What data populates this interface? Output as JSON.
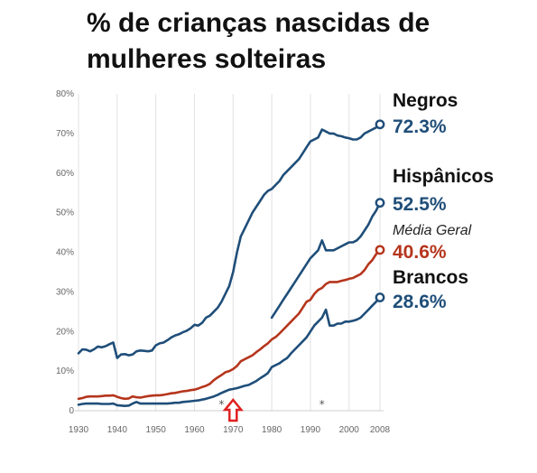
{
  "chart_data": {
    "type": "line",
    "title_lines": [
      "% de crianças nascidas de",
      "mulheres solteiras"
    ],
    "ylim": [
      0,
      80
    ],
    "xlim": [
      1930,
      2008
    ],
    "y_ticks": [
      0,
      10,
      20,
      30,
      40,
      50,
      60,
      70,
      80
    ],
    "y_tick_labels": [
      "0",
      "10%",
      "20%",
      "30%",
      "40%",
      "50%",
      "60%",
      "70%",
      "80%"
    ],
    "x_ticks": [
      1930,
      1940,
      1950,
      1960,
      1970,
      1980,
      1990,
      2000,
      2008
    ],
    "x_tick_labels": [
      "1930",
      "1940",
      "1950",
      "1960",
      "1970",
      "1980",
      "1990",
      "2000",
      "2008"
    ],
    "grid": "vertical",
    "series": [
      {
        "name": "Negros",
        "end_label": "72.3%",
        "color": "#1f4e79",
        "x": [
          1930,
          1931,
          1932,
          1933,
          1934,
          1935,
          1936,
          1937,
          1938,
          1939,
          1940,
          1941,
          1942,
          1943,
          1944,
          1945,
          1946,
          1947,
          1948,
          1949,
          1950,
          1951,
          1952,
          1953,
          1954,
          1955,
          1956,
          1957,
          1958,
          1959,
          1960,
          1961,
          1962,
          1963,
          1964,
          1965,
          1966,
          1967,
          1968,
          1969,
          1970,
          1971,
          1972,
          1973,
          1974,
          1975,
          1976,
          1977,
          1978,
          1979,
          1980,
          1981,
          1982,
          1983,
          1984,
          1985,
          1986,
          1987,
          1988,
          1989,
          1990,
          1991,
          1992,
          1993,
          1994,
          1995,
          1996,
          1997,
          1998,
          1999,
          2000,
          2001,
          2002,
          2003,
          2004,
          2005,
          2006,
          2007,
          2008
        ],
        "values": [
          14.5,
          15.5,
          15.4,
          15,
          15.5,
          16.2,
          16,
          16.3,
          16.8,
          17.2,
          13.3,
          14.2,
          14.3,
          14,
          14.2,
          15,
          15.2,
          15.1,
          15,
          15.2,
          16.5,
          17,
          17.2,
          17.8,
          18.5,
          19,
          19.3,
          19.8,
          20.2,
          20.8,
          21.7,
          21.5,
          22.2,
          23.5,
          24,
          25,
          26,
          27.5,
          29.5,
          31.5,
          35,
          40,
          44,
          46,
          48,
          50,
          51.5,
          53,
          54.5,
          55.5,
          56,
          57,
          58,
          59.5,
          60.5,
          61.5,
          62.5,
          63.5,
          65,
          66.5,
          68,
          68.5,
          69,
          71,
          70.5,
          70,
          70,
          69.5,
          69.3,
          69,
          68.8,
          68.5,
          68.5,
          69,
          70,
          70.5,
          71,
          71.5,
          72.3
        ]
      },
      {
        "name": "Hispânicos",
        "end_label": "52.5%",
        "color": "#1f4e79",
        "x": [
          1980,
          1981,
          1982,
          1983,
          1984,
          1985,
          1986,
          1987,
          1988,
          1989,
          1990,
          1991,
          1992,
          1993,
          1994,
          1995,
          1996,
          1997,
          1998,
          1999,
          2000,
          2001,
          2002,
          2003,
          2004,
          2005,
          2006,
          2007,
          2008
        ],
        "values": [
          23.5,
          25,
          26.5,
          28,
          29.5,
          31,
          32.5,
          34,
          35.5,
          37,
          38.5,
          39.5,
          40.5,
          43,
          40.5,
          40.5,
          40.5,
          41,
          41.5,
          42,
          42.5,
          42.5,
          43,
          44,
          45.5,
          47,
          49,
          50.5,
          52.5
        ]
      },
      {
        "name": "Média Geral",
        "end_label": "40.6%",
        "color": "#b5351c",
        "x": [
          1930,
          1931,
          1932,
          1933,
          1934,
          1935,
          1936,
          1937,
          1938,
          1939,
          1940,
          1941,
          1942,
          1943,
          1944,
          1945,
          1946,
          1947,
          1948,
          1949,
          1950,
          1951,
          1952,
          1953,
          1954,
          1955,
          1956,
          1957,
          1958,
          1959,
          1960,
          1961,
          1962,
          1963,
          1964,
          1965,
          1966,
          1967,
          1968,
          1969,
          1970,
          1971,
          1972,
          1973,
          1974,
          1975,
          1976,
          1977,
          1978,
          1979,
          1980,
          1981,
          1982,
          1983,
          1984,
          1985,
          1986,
          1987,
          1988,
          1989,
          1990,
          1991,
          1992,
          1993,
          1994,
          1995,
          1996,
          1997,
          1998,
          1999,
          2000,
          2001,
          2002,
          2003,
          2004,
          2005,
          2006,
          2007,
          2008
        ],
        "values": [
          3,
          3.2,
          3.5,
          3.6,
          3.6,
          3.6,
          3.7,
          3.8,
          3.8,
          3.9,
          3.5,
          3.2,
          3,
          3.1,
          3.6,
          3.4,
          3.3,
          3.5,
          3.7,
          3.8,
          3.9,
          3.9,
          4,
          4.2,
          4.4,
          4.5,
          4.7,
          4.9,
          5,
          5.2,
          5.3,
          5.6,
          6,
          6.3,
          6.8,
          7.7,
          8.4,
          9,
          9.7,
          10,
          10.5,
          11.3,
          12.5,
          13,
          13.5,
          14,
          14.8,
          15.5,
          16.3,
          17,
          18,
          18.6,
          19.5,
          20.5,
          21.5,
          22.5,
          23.5,
          24.5,
          26,
          27.5,
          28,
          29.5,
          30.5,
          31,
          32,
          32.5,
          32.5,
          32.5,
          32.8,
          33,
          33.3,
          33.5,
          34,
          34.5,
          35.5,
          37,
          38,
          39.5,
          40.6
        ]
      },
      {
        "name": "Brancos",
        "end_label": "28.6%",
        "color": "#1f4e79",
        "x": [
          1930,
          1931,
          1932,
          1933,
          1934,
          1935,
          1936,
          1937,
          1938,
          1939,
          1940,
          1941,
          1942,
          1943,
          1944,
          1945,
          1946,
          1947,
          1948,
          1949,
          1950,
          1951,
          1952,
          1953,
          1954,
          1955,
          1956,
          1957,
          1958,
          1959,
          1960,
          1961,
          1962,
          1963,
          1964,
          1965,
          1966,
          1967,
          1968,
          1969,
          1970,
          1971,
          1972,
          1973,
          1974,
          1975,
          1976,
          1977,
          1978,
          1979,
          1980,
          1981,
          1982,
          1983,
          1984,
          1985,
          1986,
          1987,
          1988,
          1989,
          1990,
          1991,
          1992,
          1993,
          1994,
          1995,
          1996,
          1997,
          1998,
          1999,
          2000,
          2001,
          2002,
          2003,
          2004,
          2005,
          2006,
          2007,
          2008
        ],
        "values": [
          1.5,
          1.7,
          1.8,
          1.8,
          1.8,
          1.8,
          1.7,
          1.7,
          1.7,
          1.8,
          1.4,
          1.3,
          1.2,
          1.3,
          1.8,
          2.2,
          1.8,
          1.8,
          1.8,
          1.8,
          1.8,
          1.8,
          1.8,
          1.8,
          1.9,
          2,
          2,
          2.2,
          2.3,
          2.4,
          2.5,
          2.6,
          2.8,
          3,
          3.3,
          3.6,
          4,
          4.5,
          4.9,
          5.3,
          5.5,
          5.7,
          6,
          6.3,
          6.5,
          7,
          7.5,
          8.2,
          8.8,
          9.5,
          11,
          11.5,
          12,
          12.7,
          13.3,
          14.5,
          15.5,
          16.5,
          17.5,
          18.5,
          20,
          21.5,
          22.5,
          23.5,
          25.5,
          21.5,
          21.5,
          22,
          22,
          22.5,
          22.5,
          22.7,
          23,
          23.5,
          24.5,
          25.5,
          26.5,
          27.5,
          28.6
        ]
      }
    ],
    "annotations": {
      "markers": [
        {
          "x": 1967,
          "label": "*"
        },
        {
          "x": 1993,
          "label": "*"
        }
      ],
      "arrow_x": 1970
    }
  }
}
